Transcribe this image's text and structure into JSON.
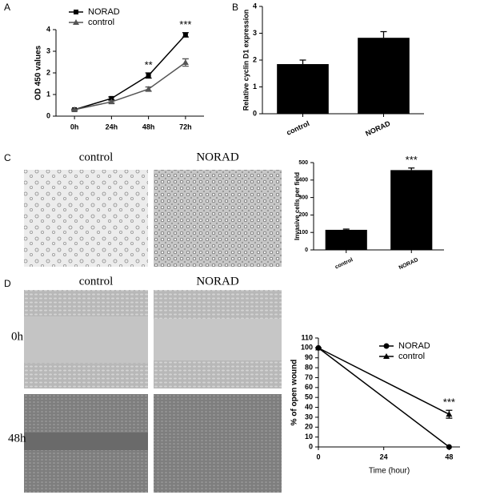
{
  "chart_data": [
    {
      "type": "line",
      "panel_label": "A",
      "ylabel": "OD 450 values",
      "categories": [
        "0h",
        "24h",
        "48h",
        "72h"
      ],
      "series": [
        {
          "name": "NORAD",
          "color": "#000000",
          "marker": "square",
          "values": [
            0.3,
            0.82,
            1.88,
            3.76
          ],
          "errors": [
            0.03,
            0.07,
            0.12,
            0.1
          ]
        },
        {
          "name": "control",
          "color": "#555555",
          "marker": "triangle",
          "values": [
            0.3,
            0.66,
            1.25,
            2.48
          ],
          "errors": [
            0.03,
            0.05,
            0.1,
            0.17
          ]
        }
      ],
      "ylim": [
        0,
        4
      ],
      "yticks": [
        0,
        1,
        2,
        3,
        4
      ],
      "legend": "upper left",
      "annotations": [
        {
          "text": "**",
          "category": "48h"
        },
        {
          "text": "***",
          "category": "72h"
        }
      ]
    },
    {
      "type": "bar",
      "panel_label": "B",
      "ylabel": "Relative cyclin D1 expression",
      "categories": [
        "control",
        "NORAD"
      ],
      "values": [
        1.85,
        2.83
      ],
      "errors": [
        0.15,
        0.23
      ],
      "color": "#000000",
      "ylim": [
        0,
        4
      ],
      "yticks": [
        0,
        1,
        2,
        3,
        4
      ]
    },
    {
      "type": "bar",
      "panel_label": "C",
      "ylabel": "Invasive cells per field",
      "categories": [
        "control",
        "NORAD"
      ],
      "values": [
        115,
        457
      ],
      "errors": [
        4,
        12
      ],
      "color": "#000000",
      "ylim": [
        0,
        500
      ],
      "yticks": [
        0,
        100,
        200,
        300,
        400,
        500
      ],
      "annotations": [
        {
          "text": "***",
          "category": "NORAD"
        }
      ]
    },
    {
      "type": "line",
      "panel_label": "D",
      "ylabel": "% of open wound",
      "xlabel": "Time (hour)",
      "x": [
        0,
        48
      ],
      "series": [
        {
          "name": "NORAD",
          "color": "#000000",
          "marker": "circle",
          "values": [
            100,
            0
          ]
        },
        {
          "name": "control",
          "color": "#000000",
          "marker": "triangle",
          "values": [
            100,
            33
          ],
          "errors": [
            0,
            4
          ]
        }
      ],
      "xlim": [
        0,
        52
      ],
      "xticks": [
        0,
        24,
        48
      ],
      "ylim": [
        0,
        110
      ],
      "yticks": [
        0,
        10,
        20,
        30,
        40,
        50,
        60,
        70,
        80,
        90,
        100,
        110
      ],
      "legend": "upper right",
      "annotations": [
        {
          "text": "***",
          "x": 48
        }
      ]
    }
  ],
  "micrographs": {
    "C": {
      "columns": [
        "control",
        "NORAD"
      ]
    },
    "D": {
      "columns": [
        "control",
        "NORAD"
      ],
      "rows": [
        "0h",
        "48h"
      ]
    }
  }
}
